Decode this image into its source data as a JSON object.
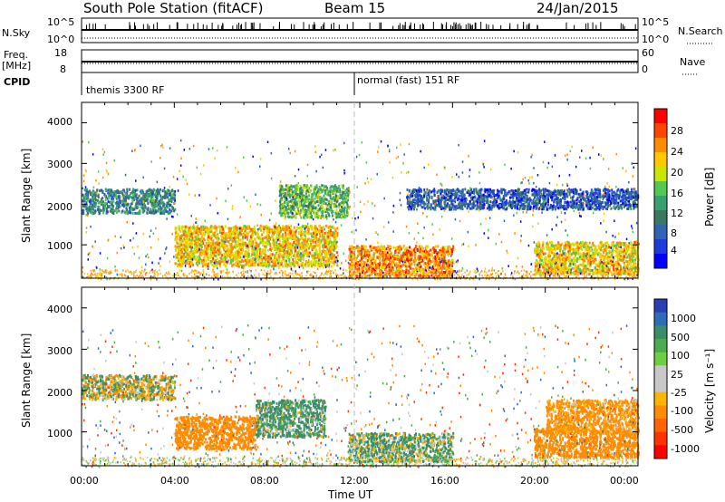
{
  "header": {
    "title": "South Pole Station (fitACF)",
    "beam": "Beam 15",
    "date": "24/Jan/2015"
  },
  "summary": {
    "nsky_label": "N.Sky",
    "nsky_top": "10^5",
    "nsky_bottom": "10^0",
    "nsky_right_top": "10^5",
    "nsky_right_bottom": "10^0",
    "nsearch_label": "N.Search",
    "freq_label": "Freq.",
    "freq_unit": "[MHz]",
    "freq_top": "18",
    "freq_bottom": "8",
    "nave_top": "60",
    "nave_bottom": "0",
    "nave_label": "Nave",
    "cpid_label": "CPID",
    "cpid_1": "themis 3300 RF",
    "cpid_2": "normal (fast) 151 RF"
  },
  "power_panel": {
    "ylabel": "Slant Range [km]",
    "yticks": [
      "4000",
      "3000",
      "2000",
      "1000"
    ],
    "colorbar_title": "Power [dB]",
    "colorbar_ticks": [
      "28",
      "24",
      "20",
      "16",
      "12",
      "8",
      "4"
    ],
    "colorbar_colors": [
      "#ff0000",
      "#ff4500",
      "#ff8c00",
      "#ffc800",
      "#c8e600",
      "#55c850",
      "#3aa070",
      "#3a7860",
      "#3264b4",
      "#1e3cdc",
      "#0000ff"
    ]
  },
  "velocity_panel": {
    "ylabel": "Slant Range [km]",
    "yticks": [
      "4000",
      "3000",
      "2000",
      "1000"
    ],
    "colorbar_title": "Velocity [m s⁻¹]",
    "colorbar_ticks": [
      "1000",
      "500",
      "100",
      "25",
      "-25",
      "-100",
      "-500",
      "-1000"
    ],
    "colorbar_colors": [
      "#2840b4",
      "#2e6cb8",
      "#3a8c6a",
      "#4caa50",
      "#6cd040",
      "#c8c8c8",
      "#c8c8c8",
      "#ffb400",
      "#ff8c00",
      "#ff6400",
      "#ff3200",
      "#ff0000"
    ]
  },
  "xaxis": {
    "label": "Time UT",
    "ticks": [
      "00:00",
      "04:00",
      "08:00",
      "12:00",
      "16:00",
      "20:00",
      "00:00"
    ]
  },
  "chart_data": [
    {
      "type": "heatmap",
      "title": "Power",
      "xlabel": "",
      "ylabel": "Slant Range [km]",
      "xlim": [
        0,
        24
      ],
      "ylim": [
        180,
        4500
      ],
      "colorbar_label": "Power [dB]",
      "colorbar_range": [
        0,
        32
      ],
      "features": [
        {
          "t": [
            0.0,
            4.0
          ],
          "range": [
            1800,
            2400
          ],
          "power": 10
        },
        {
          "t": [
            4.0,
            11.0
          ],
          "range": [
            500,
            1500
          ],
          "power": 22
        },
        {
          "t": [
            8.5,
            11.5
          ],
          "range": [
            1700,
            2500
          ],
          "power": 14
        },
        {
          "t": [
            11.5,
            16.0
          ],
          "range": [
            250,
            1000
          ],
          "power": 26
        },
        {
          "t": [
            19.5,
            24.0
          ],
          "range": [
            300,
            1100
          ],
          "power": 22
        },
        {
          "t": [
            14.0,
            24.0
          ],
          "range": [
            1900,
            2400
          ],
          "power": 6
        }
      ]
    },
    {
      "type": "heatmap",
      "title": "Velocity",
      "xlabel": "Time UT",
      "ylabel": "Slant Range [km]",
      "xlim": [
        0,
        24
      ],
      "ylim": [
        180,
        4500
      ],
      "colorbar_label": "Velocity [m s⁻¹]",
      "colorbar_range": [
        -1000,
        1000
      ],
      "features": [
        {
          "t": [
            0.0,
            4.0
          ],
          "range": [
            1800,
            2400
          ],
          "velocity": 0
        },
        {
          "t": [
            4.0,
            7.5
          ],
          "range": [
            600,
            1400
          ],
          "velocity": -300
        },
        {
          "t": [
            7.5,
            10.5
          ],
          "range": [
            900,
            1800
          ],
          "velocity": 150
        },
        {
          "t": [
            11.5,
            16.0
          ],
          "range": [
            300,
            1000
          ],
          "velocity": 100
        },
        {
          "t": [
            19.5,
            24.0
          ],
          "range": [
            400,
            1100
          ],
          "velocity": -300
        },
        {
          "t": [
            20.0,
            24.0
          ],
          "range": [
            1000,
            1800
          ],
          "velocity": -200
        }
      ]
    }
  ]
}
